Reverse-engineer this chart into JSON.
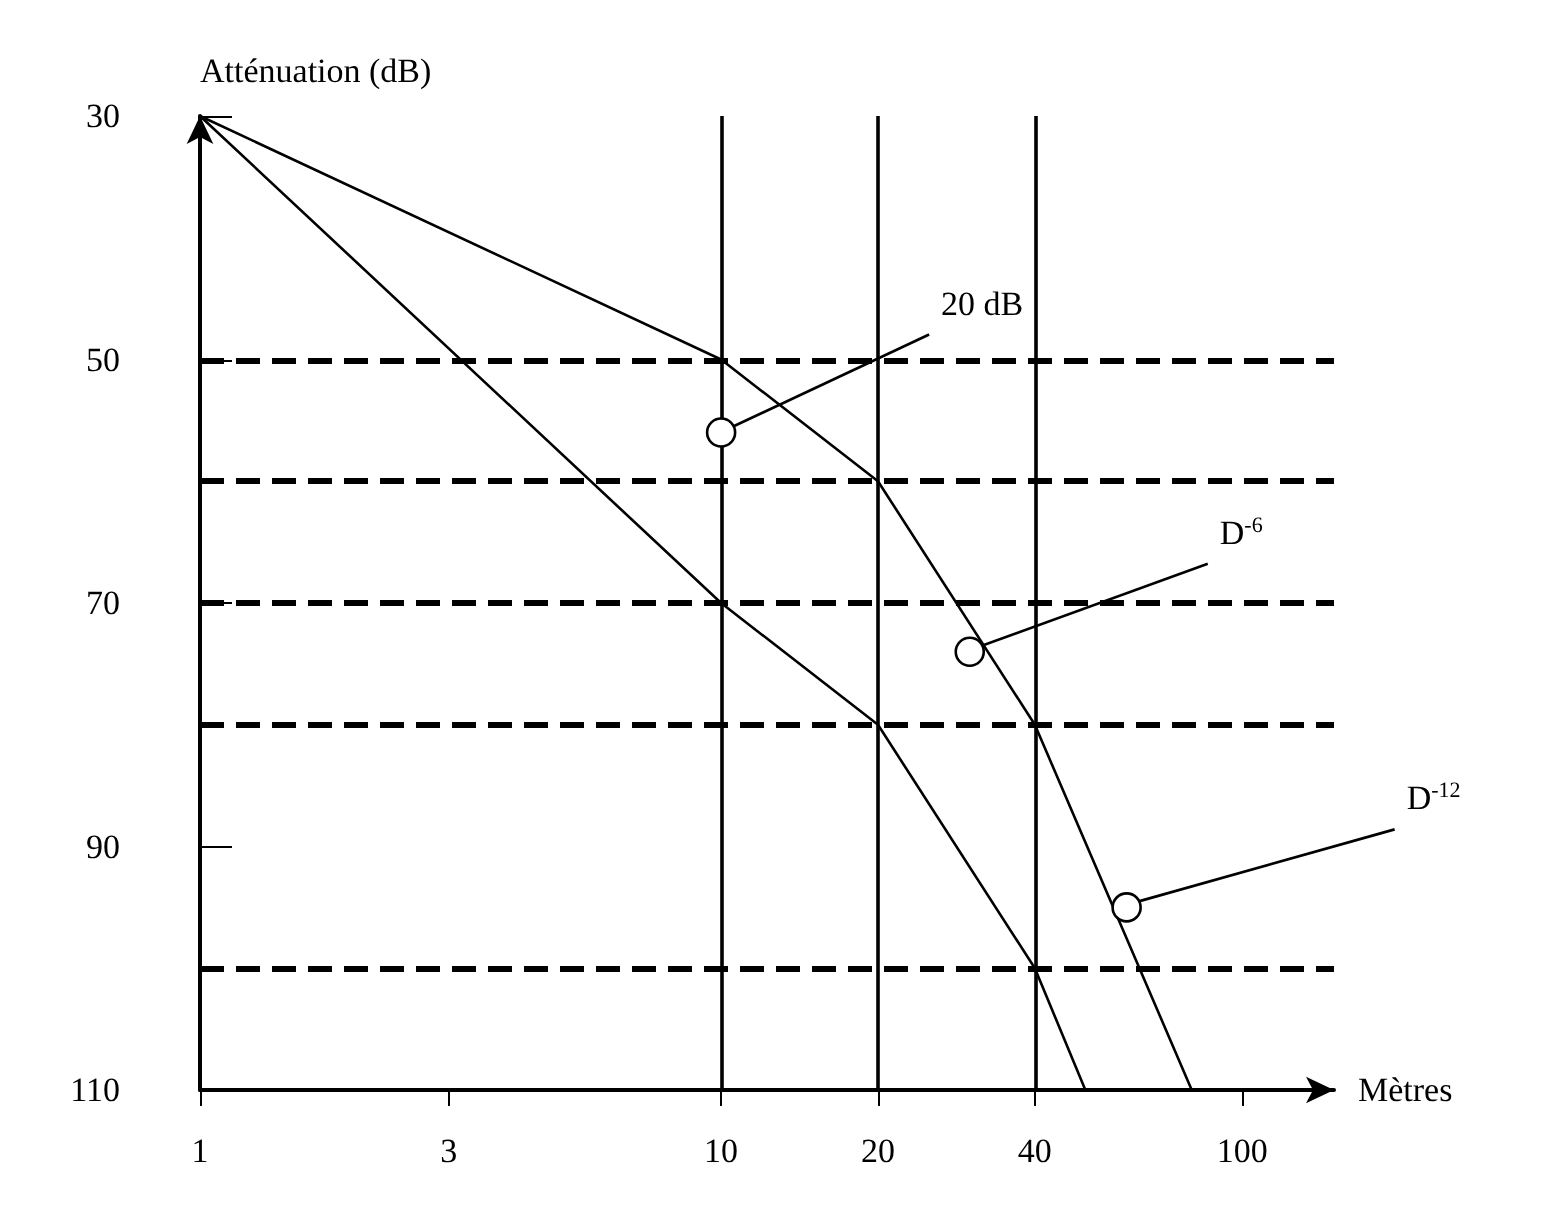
{
  "chart_data": {
    "type": "line",
    "ylabel": "Atténuation (dB)",
    "xlabel": "Mètres",
    "series": [
      {
        "color": "#000000",
        "x": [
          1,
          10,
          20,
          40,
          80
        ],
        "values": [
          30,
          50,
          60,
          80,
          110
        ]
      },
      {
        "color": "#000000",
        "x": [
          1,
          10,
          20,
          40,
          50
        ],
        "values": [
          30,
          70,
          80,
          100,
          110
        ]
      }
    ],
    "log": "x",
    "xlim": [
      1,
      150
    ],
    "xticks": [
      1,
      3,
      10,
      20,
      40,
      100
    ],
    "ylim": [
      110,
      30
    ],
    "yticks": [
      30,
      50,
      70,
      90,
      110
    ],
    "marker": "none",
    "line_style": "solid",
    "grid": false,
    "ref_lines": [
      {
        "axis": "y",
        "value": 50,
        "color": "#000000",
        "line_style": "dashed"
      },
      {
        "axis": "y",
        "value": 60,
        "color": "#000000",
        "line_style": "dashed"
      },
      {
        "axis": "y",
        "value": 70,
        "color": "#000000",
        "line_style": "dashed"
      },
      {
        "axis": "y",
        "value": 80,
        "color": "#000000",
        "line_style": "dashed"
      },
      {
        "axis": "y",
        "value": 100,
        "color": "#000000",
        "line_style": "dashed"
      },
      {
        "axis": "x",
        "value": 10,
        "color": "#000000",
        "line_style": "solid"
      },
      {
        "axis": "x",
        "value": 20,
        "color": "#000000",
        "line_style": "solid"
      },
      {
        "axis": "x",
        "value": 40,
        "color": "#000000",
        "line_style": "solid"
      }
    ],
    "annotations": [
      {
        "text": "20 dB",
        "x": 10,
        "y": 56
      },
      {
        "text": "D$^{-6}$",
        "x": 30,
        "y": 74
      },
      {
        "text": "D$^{-12}$",
        "x": 60,
        "y": 95
      }
    ]
  }
}
